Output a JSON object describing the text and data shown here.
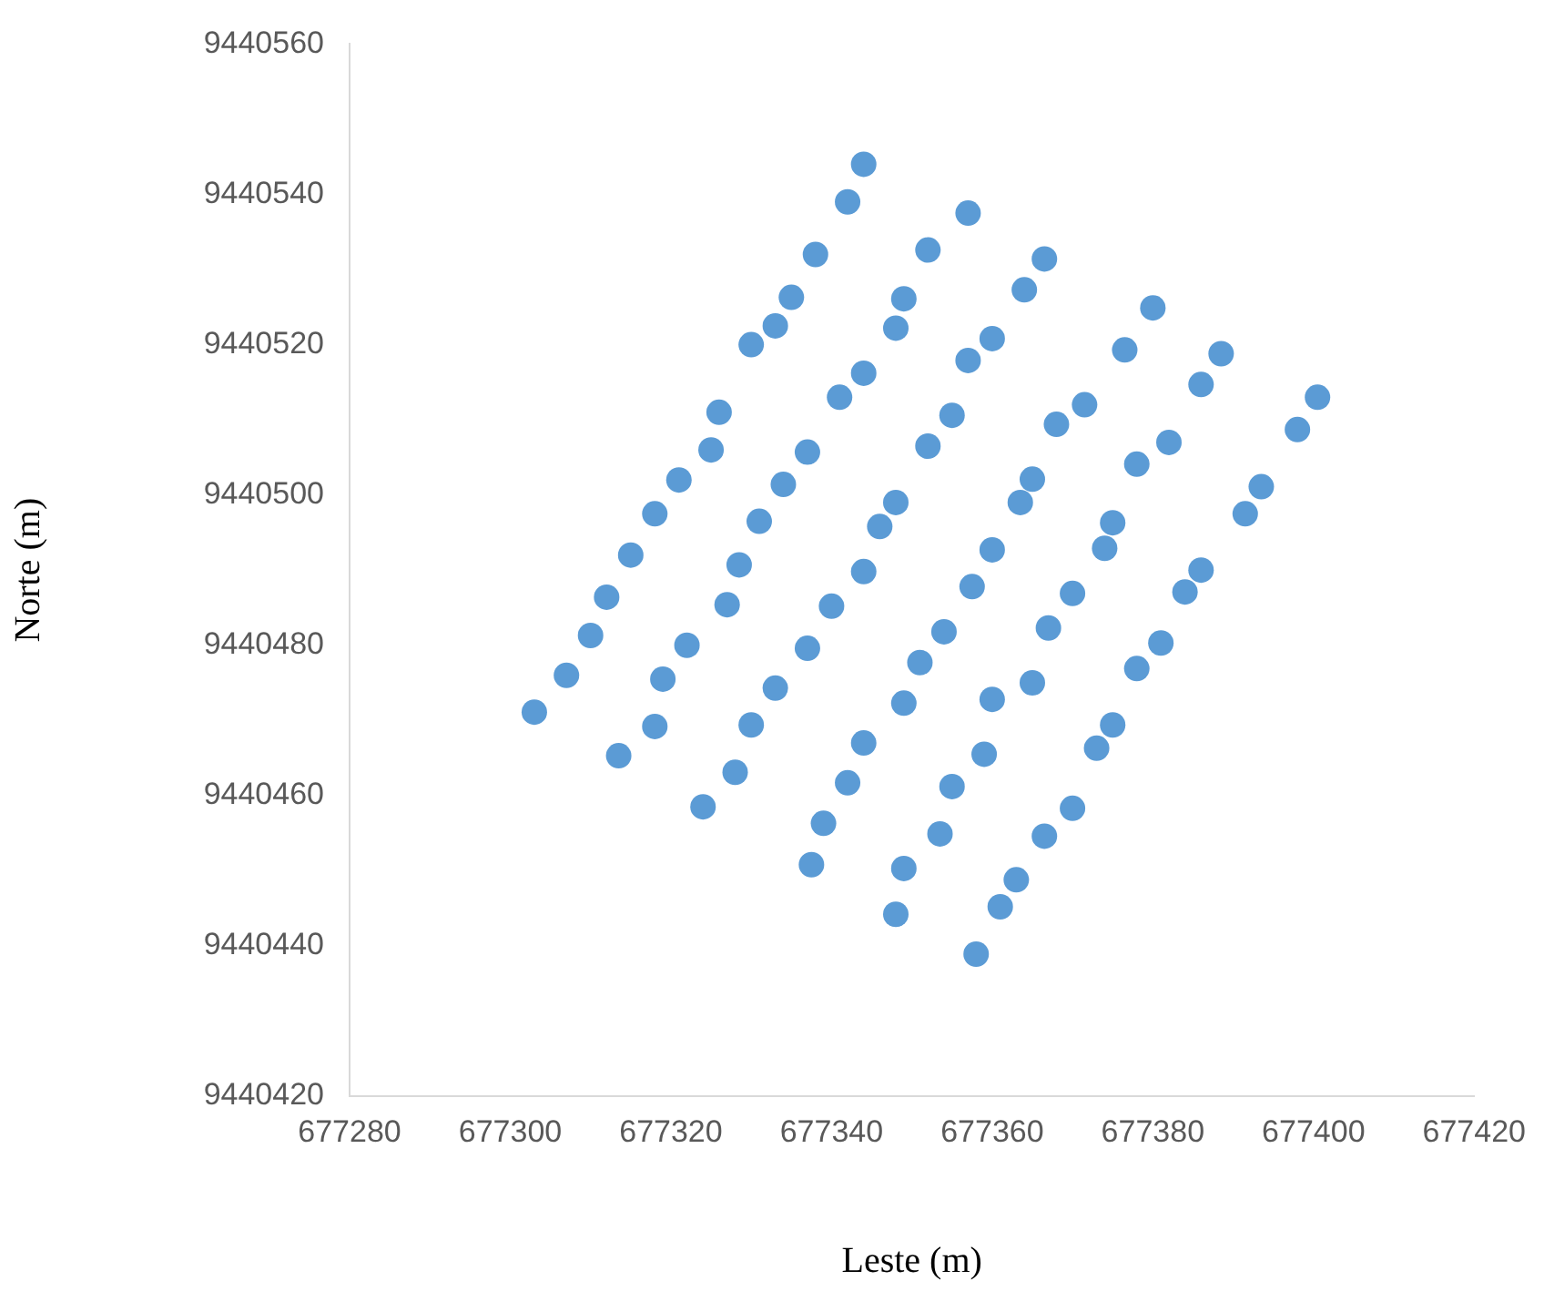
{
  "chart_data": {
    "type": "scatter",
    "xlabel": "Leste (m)",
    "ylabel": "Norte (m)",
    "xlim": [
      677280,
      677420
    ],
    "xticks": [
      677280,
      677300,
      677320,
      677340,
      677360,
      677380,
      677400,
      677420
    ],
    "ylim": [
      9440420,
      9440560
    ],
    "yticks": [
      9440420,
      9440440,
      9440460,
      9440480,
      9440500,
      9440520,
      9440540,
      9440560
    ],
    "grid": false,
    "legend": false,
    "marker": "circle",
    "series": [
      {
        "color": "#5b9bd5",
        "x": [
          677303,
          677307,
          677310,
          677312,
          677315,
          677318,
          677321,
          677325,
          677326,
          677330,
          677333,
          677335,
          677338,
          677342,
          677344,
          677313.5,
          677318,
          677319,
          677322,
          677327,
          677328.5,
          677331,
          677334,
          677337,
          677341,
          677344,
          677348,
          677349,
          677352,
          677357,
          677324,
          677328,
          677330,
          677333,
          677337,
          677340,
          677344,
          677346,
          677348,
          677352,
          677355,
          677357,
          677360,
          677364,
          677366.5,
          677337.5,
          677339,
          677342,
          677344,
          677349,
          677351,
          677354,
          677357.5,
          677360,
          677363.5,
          677365,
          677368,
          677371.5,
          677376.5,
          677380,
          677348,
          677349,
          677353.5,
          677355,
          677359,
          677360,
          677365,
          677367,
          677370,
          677374,
          677375,
          677378,
          677382,
          677386,
          677388.5,
          677358,
          677361,
          677363,
          677366.5,
          677370,
          677373,
          677375,
          677378,
          677381,
          677384,
          677386,
          677391.5,
          677393.5,
          677398,
          677400.5
        ],
        "values": [
          9440471.1,
          9440476,
          9440481.3,
          9440486.4,
          9440492,
          9440497.5,
          9440502,
          9440506,
          9440511,
          9440520,
          9440522.5,
          9440526.3,
          9440532,
          9440539,
          9440544,
          9440465.3,
          9440469.2,
          9440475.5,
          9440480,
          9440485.4,
          9440490.7,
          9440496.5,
          9440501.4,
          9440505.7,
          9440513,
          9440516.2,
          9440522.2,
          9440526.1,
          9440532.6,
          9440537.5,
          9440458.5,
          9440463.1,
          9440469.4,
          9440474.3,
          9440479.6,
          9440485.2,
          9440489.8,
          9440495.8,
          9440499,
          9440506.5,
          9440510.6,
          9440517.9,
          9440520.8,
          9440527.3,
          9440531.4,
          9440450.8,
          9440456.3,
          9440461.7,
          9440467,
          9440472.3,
          9440477.7,
          9440481.8,
          9440487.8,
          9440492.7,
          9440499,
          9440502.1,
          9440509.4,
          9440512,
          9440519.3,
          9440524.9,
          9440444.2,
          9440450.3,
          9440454.9,
          9440461.2,
          9440465.5,
          9440472.8,
          9440475,
          9440482.3,
          9440486.9,
          9440492.9,
          9440496.3,
          9440504.1,
          9440507,
          9440514.7,
          9440518.8,
          9440438.9,
          9440445.2,
          9440448.8,
          9440454.6,
          9440458.3,
          9440466.3,
          9440469.4,
          9440476.9,
          9440480.3,
          9440487.1,
          9440490,
          9440497.5,
          9440501.1,
          9440508.7,
          9440513
        ]
      }
    ]
  }
}
